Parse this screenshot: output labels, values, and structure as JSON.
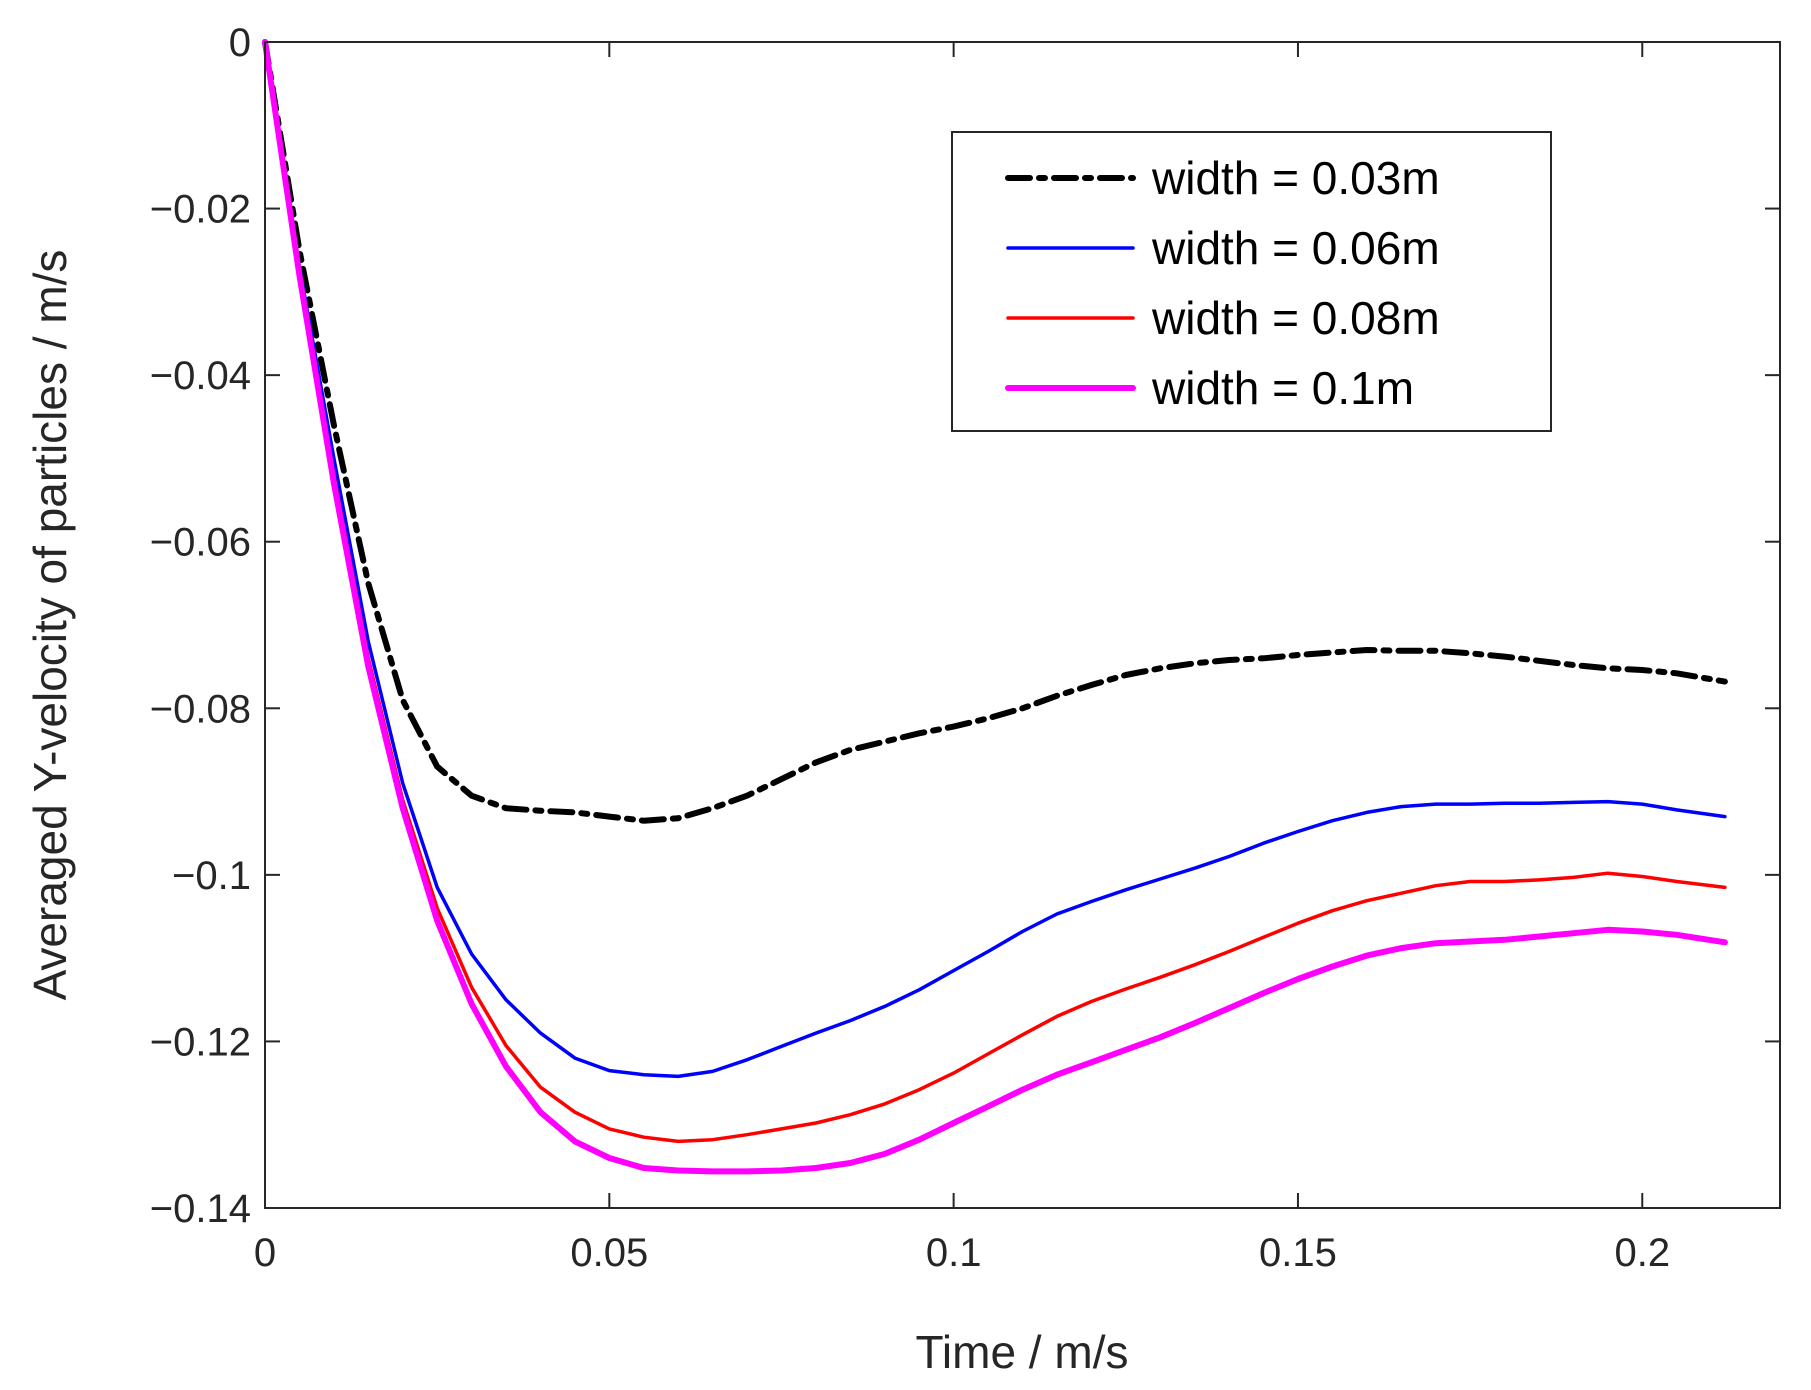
{
  "chart_data": {
    "type": "line",
    "title": "",
    "xlabel": "Time / m/s",
    "ylabel": "Averaged Y-velocity of particles / m/s",
    "xlim": [
      0,
      0.22
    ],
    "ylim": [
      -0.14,
      0
    ],
    "xticks": [
      0,
      0.05,
      0.1,
      0.15,
      0.2
    ],
    "xtick_labels": [
      "0",
      "0.05",
      "0.1",
      "0.15",
      "0.2"
    ],
    "yticks": [
      0,
      -0.02,
      -0.04,
      -0.06,
      -0.08,
      -0.1,
      -0.12,
      -0.14
    ],
    "ytick_labels": [
      "0",
      "−0.02",
      "−0.04",
      "−0.06",
      "−0.08",
      "−0.1",
      "−0.12",
      "−0.14"
    ],
    "grid": false,
    "legend_position": "top-right",
    "series": [
      {
        "name": "width = 0.03m",
        "color": "#000000",
        "style": "dashdot",
        "x": [
          0,
          0.005,
          0.01,
          0.015,
          0.02,
          0.025,
          0.03,
          0.035,
          0.04,
          0.045,
          0.05,
          0.055,
          0.06,
          0.065,
          0.07,
          0.075,
          0.08,
          0.085,
          0.09,
          0.095,
          0.1,
          0.105,
          0.11,
          0.115,
          0.12,
          0.125,
          0.13,
          0.135,
          0.14,
          0.145,
          0.15,
          0.155,
          0.16,
          0.165,
          0.17,
          0.175,
          0.18,
          0.185,
          0.19,
          0.195,
          0.2,
          0.205,
          0.212
        ],
        "values": [
          0,
          -0.025,
          -0.046,
          -0.065,
          -0.079,
          -0.087,
          -0.0905,
          -0.092,
          -0.0923,
          -0.0925,
          -0.093,
          -0.0935,
          -0.0932,
          -0.092,
          -0.0905,
          -0.0885,
          -0.0865,
          -0.085,
          -0.084,
          -0.083,
          -0.0822,
          -0.0812,
          -0.08,
          -0.0785,
          -0.0772,
          -0.076,
          -0.0752,
          -0.0746,
          -0.0742,
          -0.074,
          -0.0736,
          -0.0733,
          -0.073,
          -0.0731,
          -0.0731,
          -0.0734,
          -0.0738,
          -0.0743,
          -0.0748,
          -0.0752,
          -0.0754,
          -0.0758,
          -0.0768
        ]
      },
      {
        "name": "width = 0.06m",
        "color": "#0000ff",
        "style": "solid",
        "x": [
          0,
          0.005,
          0.01,
          0.015,
          0.02,
          0.025,
          0.03,
          0.035,
          0.04,
          0.045,
          0.05,
          0.055,
          0.06,
          0.065,
          0.07,
          0.075,
          0.08,
          0.085,
          0.09,
          0.095,
          0.1,
          0.105,
          0.11,
          0.115,
          0.12,
          0.125,
          0.13,
          0.135,
          0.14,
          0.145,
          0.15,
          0.155,
          0.16,
          0.165,
          0.17,
          0.175,
          0.18,
          0.185,
          0.19,
          0.195,
          0.2,
          0.205,
          0.212
        ],
        "values": [
          0,
          -0.027,
          -0.05,
          -0.072,
          -0.089,
          -0.1015,
          -0.1095,
          -0.115,
          -0.119,
          -0.122,
          -0.1235,
          -0.124,
          -0.1242,
          -0.1236,
          -0.1222,
          -0.1206,
          -0.119,
          -0.1175,
          -0.1158,
          -0.1138,
          -0.1115,
          -0.1092,
          -0.1068,
          -0.1047,
          -0.1032,
          -0.1018,
          -0.1005,
          -0.0992,
          -0.0978,
          -0.0962,
          -0.0948,
          -0.0935,
          -0.0925,
          -0.0918,
          -0.0915,
          -0.0915,
          -0.0914,
          -0.0914,
          -0.0913,
          -0.0912,
          -0.0915,
          -0.0922,
          -0.093
        ]
      },
      {
        "name": "width = 0.08m",
        "color": "#ff0000",
        "style": "solid",
        "x": [
          0,
          0.005,
          0.01,
          0.015,
          0.02,
          0.025,
          0.03,
          0.035,
          0.04,
          0.045,
          0.05,
          0.055,
          0.06,
          0.065,
          0.07,
          0.075,
          0.08,
          0.085,
          0.09,
          0.095,
          0.1,
          0.105,
          0.11,
          0.115,
          0.12,
          0.125,
          0.13,
          0.135,
          0.14,
          0.145,
          0.15,
          0.155,
          0.16,
          0.165,
          0.17,
          0.175,
          0.18,
          0.185,
          0.19,
          0.195,
          0.2,
          0.205,
          0.212
        ],
        "values": [
          0,
          -0.028,
          -0.052,
          -0.074,
          -0.091,
          -0.104,
          -0.1135,
          -0.1205,
          -0.1255,
          -0.1285,
          -0.1305,
          -0.1315,
          -0.132,
          -0.1318,
          -0.1312,
          -0.1305,
          -0.1298,
          -0.1288,
          -0.1275,
          -0.1258,
          -0.1238,
          -0.1215,
          -0.1192,
          -0.117,
          -0.1152,
          -0.1137,
          -0.1123,
          -0.1108,
          -0.1092,
          -0.1075,
          -0.1058,
          -0.1043,
          -0.1031,
          -0.1022,
          -0.1013,
          -0.1008,
          -0.1008,
          -0.1006,
          -0.1003,
          -0.0998,
          -0.1002,
          -0.1008,
          -0.1015
        ]
      },
      {
        "name": "width = 0.1m",
        "color": "#ff00ff",
        "style": "solid",
        "x": [
          0,
          0.005,
          0.01,
          0.015,
          0.02,
          0.025,
          0.03,
          0.035,
          0.04,
          0.045,
          0.05,
          0.055,
          0.06,
          0.065,
          0.07,
          0.075,
          0.08,
          0.085,
          0.09,
          0.095,
          0.1,
          0.105,
          0.11,
          0.115,
          0.12,
          0.125,
          0.13,
          0.135,
          0.14,
          0.145,
          0.15,
          0.155,
          0.16,
          0.165,
          0.17,
          0.175,
          0.18,
          0.185,
          0.19,
          0.195,
          0.2,
          0.205,
          0.212
        ],
        "values": [
          0,
          -0.028,
          -0.053,
          -0.075,
          -0.092,
          -0.1055,
          -0.1155,
          -0.123,
          -0.1285,
          -0.132,
          -0.134,
          -0.1352,
          -0.1355,
          -0.1356,
          -0.1356,
          -0.1355,
          -0.1352,
          -0.1346,
          -0.1335,
          -0.1318,
          -0.1298,
          -0.1278,
          -0.1258,
          -0.124,
          -0.1225,
          -0.121,
          -0.1195,
          -0.1178,
          -0.116,
          -0.1142,
          -0.1125,
          -0.111,
          -0.1097,
          -0.1088,
          -0.1082,
          -0.108,
          -0.1078,
          -0.1074,
          -0.107,
          -0.1066,
          -0.1068,
          -0.1072,
          -0.1081
        ]
      }
    ]
  }
}
